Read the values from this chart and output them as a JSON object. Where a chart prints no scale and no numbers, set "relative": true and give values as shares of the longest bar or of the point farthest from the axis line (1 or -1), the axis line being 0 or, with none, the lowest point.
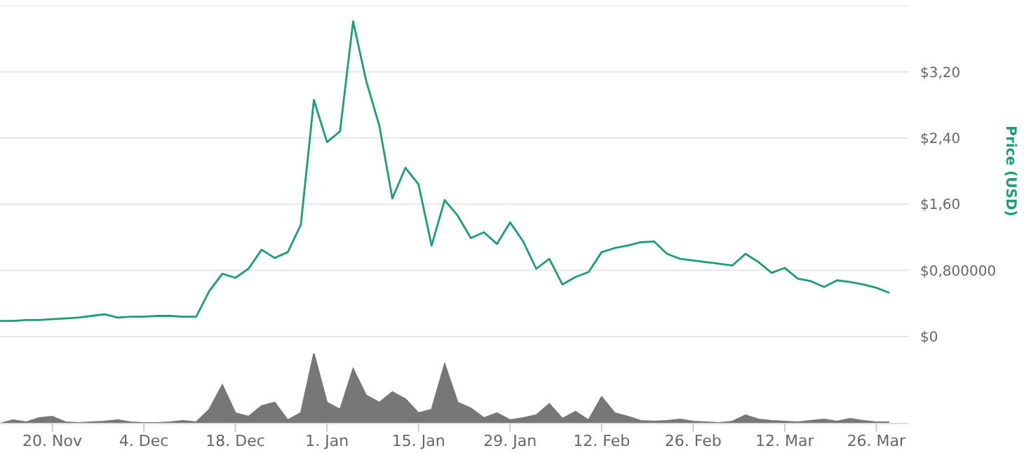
{
  "chart_data": [
    {
      "type": "line",
      "ylabel": "Price (USD)",
      "marker": "none",
      "grid": "y",
      "tick_labels": "y",
      "categories": [
        null,
        null,
        null,
        null,
        null,
        null,
        null,
        null,
        null,
        null,
        null,
        null,
        null,
        null,
        null,
        null,
        null,
        null,
        null,
        null,
        null,
        null,
        null,
        null,
        null,
        null,
        null,
        null,
        null,
        null,
        null,
        null,
        null,
        null,
        null,
        null,
        null,
        null,
        null,
        null,
        null,
        null,
        null,
        null,
        null,
        null,
        null,
        null,
        null,
        null,
        null,
        null,
        null,
        null,
        null,
        null,
        null,
        null,
        null,
        null,
        null,
        null,
        null,
        null,
        null,
        null,
        null,
        null,
        null
      ],
      "series": [
        {
          "color": "#1b9e77",
          "values": [
            0.19,
            0.19,
            0.2,
            0.2,
            0.21,
            0.22,
            0.23,
            0.25,
            0.27,
            0.23,
            0.24,
            0.24,
            0.25,
            0.25,
            0.24,
            0.24,
            0.55,
            0.76,
            0.71,
            0.82,
            1.05,
            0.95,
            1.02,
            1.35,
            2.86,
            2.35,
            2.48,
            3.81,
            3.09,
            2.55,
            1.67,
            2.04,
            1.84,
            1.1,
            1.65,
            1.46,
            1.19,
            1.26,
            1.12,
            1.38,
            1.15,
            0.82,
            0.94,
            0.63,
            0.72,
            0.78,
            1.02,
            1.07,
            1.1,
            1.14,
            1.15,
            1.0,
            0.94,
            0.92,
            0.9,
            0.88,
            0.86,
            1.0,
            0.9,
            0.77,
            0.83,
            0.7,
            0.67,
            0.6,
            0.68,
            0.66,
            0.63,
            0.59,
            0.53
          ]
        }
      ],
      "ylim": [
        0,
        4
      ],
      "yticks": [
        {
          "value": 0,
          "label": "$0"
        },
        {
          "value": 0.8,
          "label": "$0,800000"
        },
        {
          "value": 1.6,
          "label": "$1,60"
        },
        {
          "value": 2.4,
          "label": "$2,40"
        },
        {
          "value": 3.2,
          "label": "$3,20"
        }
      ]
    },
    {
      "type": "area",
      "relative": true,
      "tick_labels": "x",
      "categories": [
        null,
        null,
        null,
        null,
        "20. Nov",
        null,
        null,
        null,
        null,
        null,
        null,
        "4. Dec",
        null,
        null,
        null,
        null,
        null,
        null,
        "18. Dec",
        null,
        null,
        null,
        null,
        null,
        null,
        "1. Jan",
        null,
        null,
        null,
        null,
        null,
        null,
        "15. Jan",
        null,
        null,
        null,
        null,
        null,
        null,
        "29. Jan",
        null,
        null,
        null,
        null,
        null,
        null,
        "12. Feb",
        null,
        null,
        null,
        null,
        null,
        null,
        "26. Feb",
        null,
        null,
        null,
        null,
        null,
        null,
        "12. Mar",
        null,
        null,
        null,
        null,
        null,
        null,
        "26. Mar",
        null
      ],
      "series": [
        {
          "color": "#777777",
          "values": [
            0,
            0.05,
            0.02,
            0.08,
            0.1,
            0.02,
            0.01,
            0.02,
            0.03,
            0.05,
            0.02,
            0.01,
            0.01,
            0.02,
            0.04,
            0.02,
            0.2,
            0.55,
            0.15,
            0.1,
            0.25,
            0.3,
            0.05,
            0.15,
            1.0,
            0.3,
            0.2,
            0.78,
            0.4,
            0.3,
            0.45,
            0.35,
            0.15,
            0.2,
            0.85,
            0.3,
            0.22,
            0.08,
            0.15,
            0.05,
            0.08,
            0.12,
            0.28,
            0.07,
            0.17,
            0.05,
            0.38,
            0.15,
            0.1,
            0.04,
            0.03,
            0.04,
            0.06,
            0.03,
            0.02,
            0.01,
            0.03,
            0.12,
            0.06,
            0.04,
            0.03,
            0.02,
            0.04,
            0.06,
            0.03,
            0.07,
            0.04,
            0.02,
            0.02
          ]
        }
      ]
    }
  ]
}
